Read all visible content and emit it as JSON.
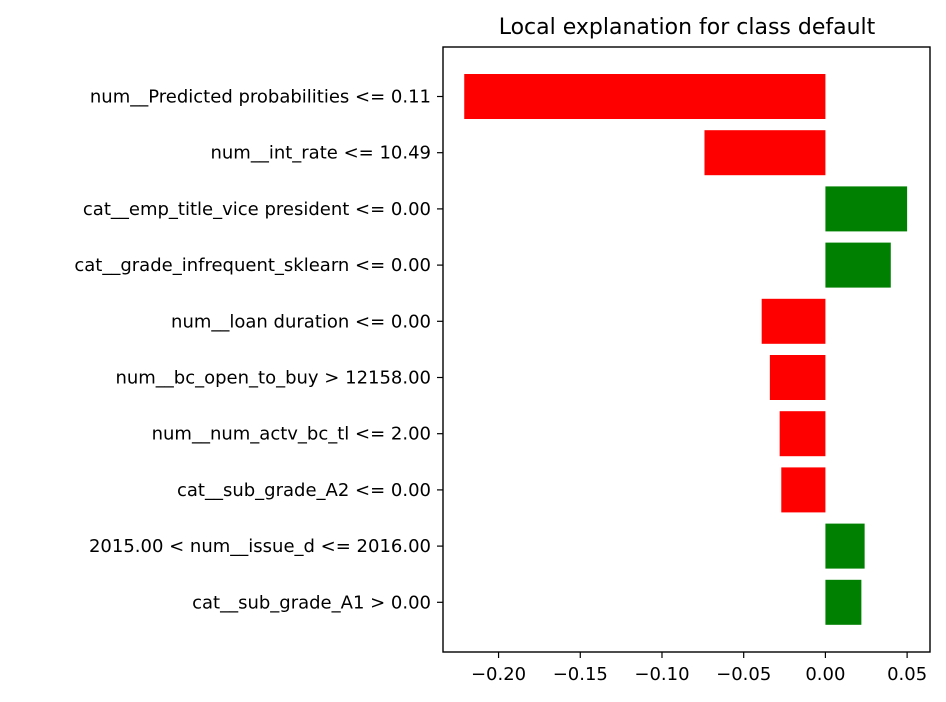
{
  "chart_data": {
    "type": "bar",
    "orientation": "horizontal",
    "title": "Local explanation for class default",
    "xlabel": "",
    "ylabel": "",
    "xlim": [
      -0.234,
      0.064
    ],
    "xticks": [
      -0.2,
      -0.15,
      -0.1,
      -0.05,
      0.0,
      0.05
    ],
    "xtick_labels": [
      "−0.20",
      "−0.15",
      "−0.10",
      "−0.05",
      "0.00",
      "0.05"
    ],
    "grid": false,
    "positive_color": "#008000",
    "negative_color": "#ff0000",
    "categories": [
      "num__Predicted probabilities <= 0.11",
      "num__int_rate <= 10.49",
      "cat__emp_title_vice president <= 0.00",
      "cat__grade_infrequent_sklearn <= 0.00",
      "num__loan duration <= 0.00",
      "num__bc_open_to_buy > 12158.00",
      "num__num_actv_bc_tl <= 2.00",
      "cat__sub_grade_A2 <= 0.00",
      "2015.00 < num__issue_d <= 2016.00",
      "cat__sub_grade_A1 > 0.00"
    ],
    "values": [
      -0.221,
      -0.074,
      0.05,
      0.04,
      -0.039,
      -0.034,
      -0.028,
      -0.027,
      0.024,
      0.022
    ]
  }
}
